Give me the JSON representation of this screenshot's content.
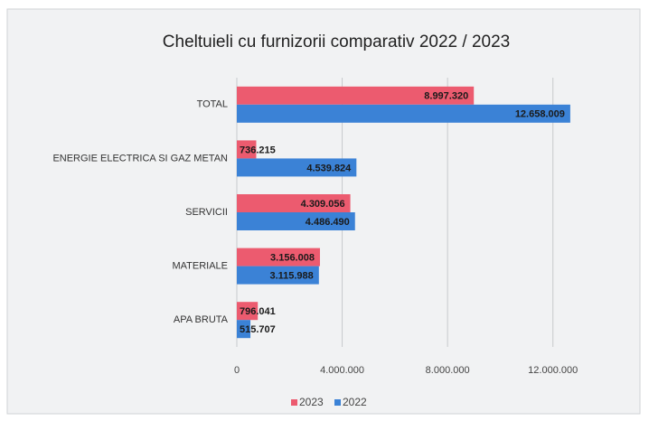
{
  "chart_data": {
    "type": "hbar",
    "title": "Cheltuieli cu furnizorii comparativ 2022 / 2023",
    "categories": [
      "TOTAL",
      "ENERGIE ELECTRICA SI GAZ METAN",
      "SERVICII",
      "MATERIALE",
      "APA BRUTA"
    ],
    "series": [
      {
        "name": "2023",
        "color": "#ec5b6f",
        "values": [
          8997320,
          736215,
          4309056,
          3156008,
          796041
        ],
        "value_labels": [
          "8.997.320",
          "736.215",
          "4.309.056",
          "3.156.008",
          "796.041"
        ]
      },
      {
        "name": "2022",
        "color": "#3b82d6",
        "values": [
          12658009,
          4539824,
          4486490,
          3115988,
          515707
        ],
        "value_labels": [
          "12.658.009",
          "4.539.824",
          "4.486.490",
          "3.115.988",
          "515.707"
        ]
      }
    ],
    "xlim": [
      0,
      14000000
    ],
    "xticks": [
      0,
      {
        "value": 4000000,
        "label": "4.000.000"
      },
      {
        "value": 8000000,
        "label": "8.000.000"
      },
      {
        "value": 12000000,
        "label": "12.000.000"
      }
    ],
    "grid": true,
    "legend": "bottom"
  }
}
